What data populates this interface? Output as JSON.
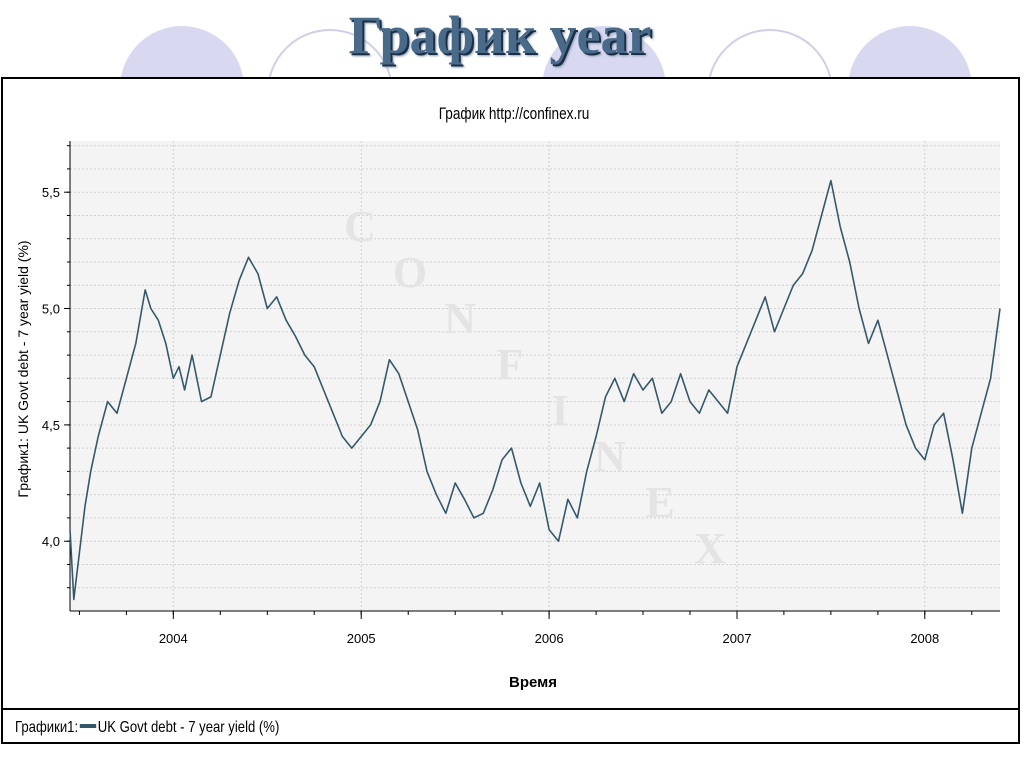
{
  "slide": {
    "title": "График year"
  },
  "colors": {
    "line": "#35596a",
    "plot_bg": "#f4f4f4",
    "grid": "#cfcfcf",
    "circle": "#d8d8f0",
    "title": "#4a6a8a"
  },
  "watermark": {
    "letters": [
      "C",
      "O",
      "N",
      "F",
      "I",
      "N",
      "E",
      "X"
    ]
  },
  "legend": {
    "prefix": "Графики1:",
    "label": "UK Govt debt - 7 year yield  (%)"
  },
  "chart_data": {
    "type": "line",
    "title": "График    http://confinex.ru",
    "xlabel": "Время",
    "ylabel": "График1: UK Govt debt - 7 year yield  (%)",
    "x_ticks": [
      "2004",
      "2005",
      "2006",
      "2007",
      "2008"
    ],
    "y_ticks": [
      "4,0",
      "4,5",
      "5,0",
      "5,5"
    ],
    "xlim": [
      2003.45,
      2008.4
    ],
    "ylim": [
      3.7,
      5.72
    ],
    "grid": true,
    "legend_position": "bottom",
    "series": [
      {
        "name": "UK Govt debt - 7 year yield  (%)",
        "x": [
          2003.45,
          2003.47,
          2003.5,
          2003.53,
          2003.56,
          2003.6,
          2003.65,
          2003.7,
          2003.75,
          2003.8,
          2003.85,
          2003.88,
          2003.92,
          2003.96,
          2004.0,
          2004.03,
          2004.06,
          2004.1,
          2004.15,
          2004.2,
          2004.25,
          2004.3,
          2004.35,
          2004.4,
          2004.45,
          2004.5,
          2004.55,
          2004.6,
          2004.65,
          2004.7,
          2004.75,
          2004.8,
          2004.85,
          2004.9,
          2004.95,
          2005.0,
          2005.05,
          2005.1,
          2005.15,
          2005.2,
          2005.25,
          2005.3,
          2005.35,
          2005.4,
          2005.45,
          2005.5,
          2005.55,
          2005.6,
          2005.65,
          2005.7,
          2005.75,
          2005.8,
          2005.85,
          2005.9,
          2005.95,
          2006.0,
          2006.05,
          2006.1,
          2006.15,
          2006.2,
          2006.25,
          2006.3,
          2006.35,
          2006.4,
          2006.45,
          2006.5,
          2006.55,
          2006.6,
          2006.65,
          2006.7,
          2006.75,
          2006.8,
          2006.85,
          2006.9,
          2006.95,
          2007.0,
          2007.05,
          2007.1,
          2007.15,
          2007.2,
          2007.25,
          2007.3,
          2007.35,
          2007.4,
          2007.45,
          2007.5,
          2007.55,
          2007.6,
          2007.65,
          2007.7,
          2007.75,
          2007.8,
          2007.85,
          2007.9,
          2007.95,
          2008.0,
          2008.05,
          2008.1,
          2008.15,
          2008.2,
          2008.25,
          2008.3,
          2008.35,
          2008.4
        ],
        "y": [
          4.05,
          3.75,
          3.95,
          4.15,
          4.3,
          4.45,
          4.6,
          4.55,
          4.7,
          4.85,
          5.08,
          5.0,
          4.95,
          4.85,
          4.7,
          4.75,
          4.65,
          4.8,
          4.6,
          4.62,
          4.8,
          4.98,
          5.12,
          5.22,
          5.15,
          5.0,
          5.05,
          4.95,
          4.88,
          4.8,
          4.75,
          4.65,
          4.55,
          4.45,
          4.4,
          4.45,
          4.5,
          4.6,
          4.78,
          4.72,
          4.6,
          4.48,
          4.3,
          4.2,
          4.12,
          4.25,
          4.18,
          4.1,
          4.12,
          4.22,
          4.35,
          4.4,
          4.25,
          4.15,
          4.25,
          4.05,
          4.0,
          4.18,
          4.1,
          4.3,
          4.45,
          4.62,
          4.7,
          4.6,
          4.72,
          4.65,
          4.7,
          4.55,
          4.6,
          4.72,
          4.6,
          4.55,
          4.65,
          4.6,
          4.55,
          4.75,
          4.85,
          4.95,
          5.05,
          4.9,
          5.0,
          5.1,
          5.15,
          5.25,
          5.4,
          5.55,
          5.35,
          5.2,
          5.0,
          4.85,
          4.95,
          4.8,
          4.65,
          4.5,
          4.4,
          4.35,
          4.5,
          4.55,
          4.35,
          4.12,
          4.4,
          4.55,
          4.7,
          5.0
        ]
      }
    ]
  }
}
